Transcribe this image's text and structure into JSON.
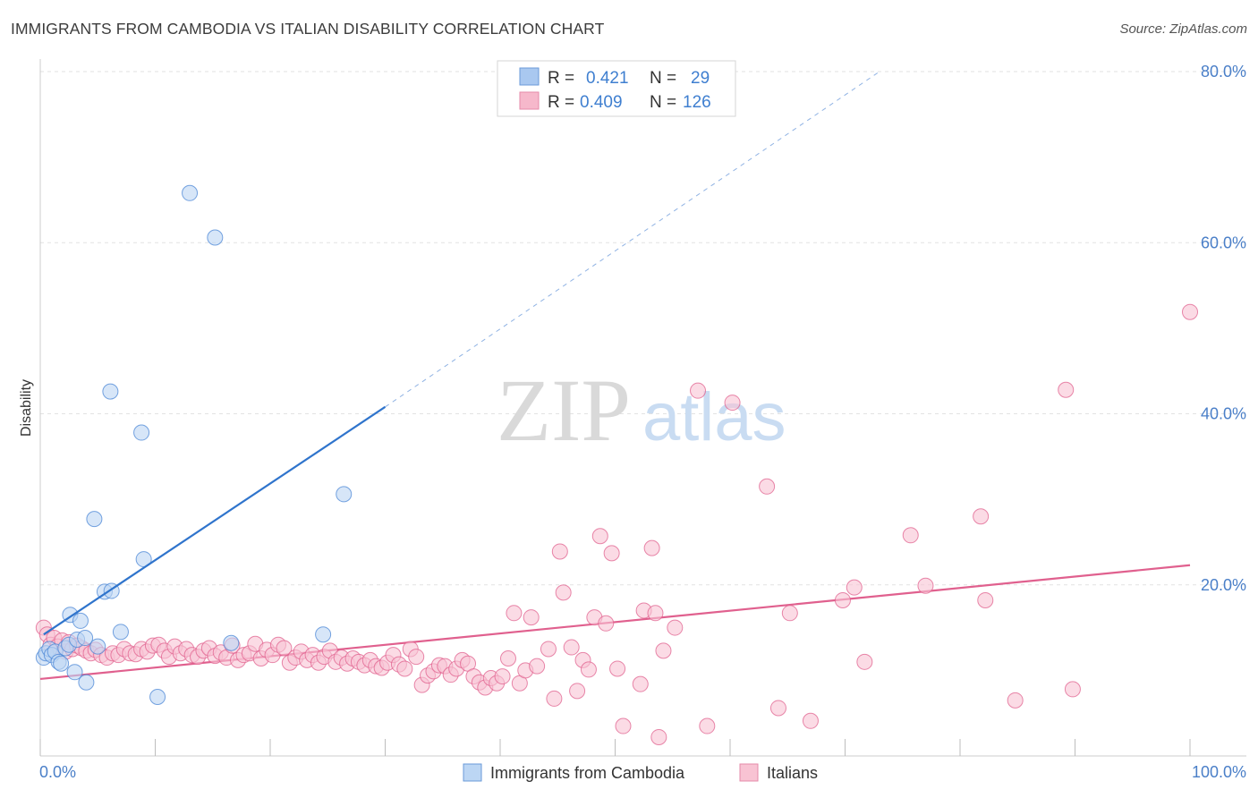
{
  "header": {
    "title": "IMMIGRANTS FROM CAMBODIA VS ITALIAN DISABILITY CORRELATION CHART",
    "source": "Source: ZipAtlas.com"
  },
  "watermark": {
    "zip": "ZIP",
    "atlas": "atlas"
  },
  "stats": [
    {
      "r_label": "R =",
      "r_value": "0.421",
      "n_label": "N =",
      "n_value": "29",
      "color": "#a9c8f0"
    },
    {
      "r_label": "R =",
      "r_value": "0.409",
      "n_label": "N =",
      "n_value": "126",
      "color": "#f6b8cb"
    }
  ],
  "chart_data": {
    "type": "scatter",
    "title": "IMMIGRANTS FROM CAMBODIA VS ITALIAN DISABILITY CORRELATION CHART",
    "xlabel": "",
    "ylabel": "Disability",
    "xlim": [
      0,
      100
    ],
    "ylim": [
      0,
      80
    ],
    "x_tick_labels": [
      "0.0%",
      "100.0%"
    ],
    "y_ticks": [
      20,
      40,
      60,
      80
    ],
    "y_tick_labels": [
      "20.0%",
      "40.0%",
      "60.0%",
      "80.0%"
    ],
    "grid": true,
    "legend_position": "bottom-center",
    "series": [
      {
        "name": "Immigrants from Cambodia",
        "color": "#4a86d6",
        "fill": "#bcd6f4",
        "points": [
          [
            0.3,
            11.5
          ],
          [
            0.5,
            12.0
          ],
          [
            0.8,
            12.5
          ],
          [
            1.0,
            11.8
          ],
          [
            1.3,
            12.2
          ],
          [
            1.6,
            11.0
          ],
          [
            1.8,
            10.8
          ],
          [
            2.2,
            12.6
          ],
          [
            2.5,
            13.0
          ],
          [
            2.6,
            16.5
          ],
          [
            3.0,
            9.8
          ],
          [
            3.2,
            13.6
          ],
          [
            3.5,
            15.8
          ],
          [
            3.9,
            13.8
          ],
          [
            4.0,
            8.6
          ],
          [
            4.7,
            27.7
          ],
          [
            5.0,
            12.8
          ],
          [
            5.6,
            19.2
          ],
          [
            6.2,
            19.3
          ],
          [
            6.1,
            42.6
          ],
          [
            7.0,
            14.5
          ],
          [
            8.8,
            37.8
          ],
          [
            9.0,
            23.0
          ],
          [
            10.2,
            6.9
          ],
          [
            13.0,
            65.8
          ],
          [
            15.2,
            60.6
          ],
          [
            16.6,
            13.2
          ],
          [
            26.4,
            30.6
          ],
          [
            24.6,
            14.2
          ]
        ],
        "trend": {
          "x0": 0.3,
          "y0": 14.2,
          "x1": 30.0,
          "y1": 40.8,
          "x_ext": 73.0,
          "y_ext": 80.0
        }
      },
      {
        "name": "Italians",
        "color": "#e0608e",
        "fill": "#f8c3d3",
        "points": [
          [
            0.3,
            15.0
          ],
          [
            0.6,
            14.2
          ],
          [
            0.9,
            13.0
          ],
          [
            1.2,
            13.8
          ],
          [
            1.5,
            12.8
          ],
          [
            1.9,
            13.5
          ],
          [
            2.2,
            12.2
          ],
          [
            2.5,
            13.3
          ],
          [
            2.8,
            12.5
          ],
          [
            3.2,
            12.9
          ],
          [
            3.6,
            12.6
          ],
          [
            4.0,
            12.3
          ],
          [
            4.4,
            12.0
          ],
          [
            4.8,
            12.4
          ],
          [
            5.3,
            11.8
          ],
          [
            5.8,
            11.5
          ],
          [
            6.3,
            12.0
          ],
          [
            6.8,
            11.8
          ],
          [
            7.3,
            12.5
          ],
          [
            7.8,
            12.0
          ],
          [
            8.3,
            11.9
          ],
          [
            8.8,
            12.5
          ],
          [
            9.3,
            12.2
          ],
          [
            9.8,
            12.9
          ],
          [
            10.3,
            13.0
          ],
          [
            10.8,
            12.3
          ],
          [
            11.2,
            11.6
          ],
          [
            11.7,
            12.8
          ],
          [
            12.2,
            12.0
          ],
          [
            12.7,
            12.5
          ],
          [
            13.2,
            11.8
          ],
          [
            13.7,
            11.6
          ],
          [
            14.2,
            12.3
          ],
          [
            14.7,
            12.6
          ],
          [
            15.2,
            11.7
          ],
          [
            15.7,
            12.1
          ],
          [
            16.2,
            11.5
          ],
          [
            16.7,
            12.9
          ],
          [
            17.2,
            11.2
          ],
          [
            17.7,
            11.8
          ],
          [
            18.2,
            12.0
          ],
          [
            18.7,
            13.1
          ],
          [
            19.2,
            11.4
          ],
          [
            19.7,
            12.4
          ],
          [
            20.2,
            11.8
          ],
          [
            20.7,
            13.0
          ],
          [
            21.2,
            12.6
          ],
          [
            21.7,
            10.9
          ],
          [
            22.2,
            11.5
          ],
          [
            22.7,
            12.2
          ],
          [
            23.2,
            11.2
          ],
          [
            23.7,
            11.8
          ],
          [
            24.2,
            10.9
          ],
          [
            24.7,
            11.6
          ],
          [
            25.2,
            12.3
          ],
          [
            25.7,
            11.0
          ],
          [
            26.2,
            11.5
          ],
          [
            26.7,
            10.8
          ],
          [
            27.2,
            11.4
          ],
          [
            27.7,
            11.0
          ],
          [
            28.2,
            10.6
          ],
          [
            28.7,
            11.2
          ],
          [
            29.2,
            10.5
          ],
          [
            29.7,
            10.3
          ],
          [
            30.2,
            10.9
          ],
          [
            30.7,
            11.8
          ],
          [
            31.2,
            10.7
          ],
          [
            31.7,
            10.2
          ],
          [
            32.2,
            12.5
          ],
          [
            32.7,
            11.6
          ],
          [
            33.2,
            8.3
          ],
          [
            33.7,
            9.4
          ],
          [
            34.2,
            9.9
          ],
          [
            34.7,
            10.6
          ],
          [
            35.2,
            10.5
          ],
          [
            35.7,
            9.5
          ],
          [
            36.2,
            10.2
          ],
          [
            36.7,
            11.2
          ],
          [
            37.2,
            10.8
          ],
          [
            37.7,
            9.3
          ],
          [
            38.2,
            8.6
          ],
          [
            38.7,
            8.0
          ],
          [
            39.2,
            9.1
          ],
          [
            39.7,
            8.5
          ],
          [
            40.2,
            9.3
          ],
          [
            40.7,
            11.4
          ],
          [
            41.2,
            16.7
          ],
          [
            41.7,
            8.5
          ],
          [
            42.2,
            10.0
          ],
          [
            42.7,
            16.2
          ],
          [
            43.2,
            10.5
          ],
          [
            44.2,
            12.5
          ],
          [
            44.7,
            6.7
          ],
          [
            45.2,
            23.9
          ],
          [
            45.5,
            19.1
          ],
          [
            46.2,
            12.7
          ],
          [
            46.7,
            7.6
          ],
          [
            47.2,
            11.2
          ],
          [
            47.7,
            10.1
          ],
          [
            48.2,
            16.2
          ],
          [
            48.7,
            25.7
          ],
          [
            49.2,
            15.5
          ],
          [
            49.7,
            23.7
          ],
          [
            50.2,
            10.2
          ],
          [
            50.7,
            3.5
          ],
          [
            52.2,
            8.4
          ],
          [
            52.5,
            17.0
          ],
          [
            53.2,
            24.3
          ],
          [
            53.5,
            16.7
          ],
          [
            53.8,
            2.2
          ],
          [
            54.2,
            12.3
          ],
          [
            55.2,
            15.0
          ],
          [
            57.2,
            42.7
          ],
          [
            58.0,
            3.5
          ],
          [
            60.2,
            41.3
          ],
          [
            63.2,
            31.5
          ],
          [
            64.2,
            5.6
          ],
          [
            65.2,
            16.7
          ],
          [
            67.0,
            4.1
          ],
          [
            69.8,
            18.2
          ],
          [
            70.8,
            19.7
          ],
          [
            71.7,
            11.0
          ],
          [
            75.7,
            25.8
          ],
          [
            77.0,
            19.9
          ],
          [
            81.8,
            28.0
          ],
          [
            82.2,
            18.2
          ],
          [
            84.8,
            6.5
          ],
          [
            89.2,
            42.8
          ],
          [
            89.8,
            7.8
          ],
          [
            100.0,
            51.9
          ]
        ],
        "trend": {
          "x0": 0.0,
          "y0": 9.0,
          "x1": 100.0,
          "y1": 22.3
        }
      }
    ]
  }
}
